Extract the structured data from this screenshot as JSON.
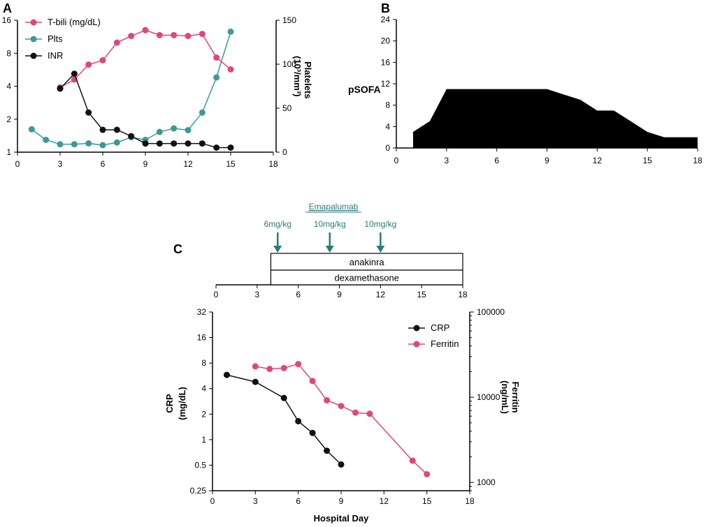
{
  "panels": {
    "a": "A",
    "b": "B",
    "c": "C"
  },
  "colors": {
    "tbili": "#e0467a",
    "plts": "#3a9a9a",
    "inr": "#111111",
    "crp": "#111111",
    "ferritin": "#e0467a",
    "annot": "#2b7a78",
    "sofa": "#000000"
  },
  "chart_data": [
    {
      "id": "A",
      "type": "line",
      "x": {
        "ticks": [
          "0",
          "3",
          "6",
          "9",
          "12",
          "15",
          "18"
        ],
        "lim": [
          0,
          18
        ]
      },
      "y_left": {
        "scale": "log2",
        "ticks": [
          "1",
          "2",
          "4",
          "8",
          "16"
        ],
        "lim": [
          1,
          16
        ]
      },
      "y_right": {
        "ticks": [
          "0",
          "50",
          "100",
          "150"
        ],
        "lim": [
          0,
          150
        ],
        "label": "Platelets",
        "label2": "(10³/mm³)"
      },
      "legend": [
        "T-bili (mg/dL)",
        "Plts",
        "INR"
      ],
      "series": [
        {
          "name": "T-bili (mg/dL)",
          "axis": "left",
          "x": [
            3,
            4,
            5,
            6,
            7,
            8,
            9,
            10,
            11,
            12,
            13,
            14,
            15
          ],
          "y": [
            3.9,
            4.6,
            6.3,
            6.9,
            10,
            11.5,
            13,
            11.7,
            11.7,
            11.5,
            12,
            7.3,
            5.7
          ]
        },
        {
          "name": "Plts",
          "axis": "right",
          "x": [
            1,
            2,
            3,
            4,
            5,
            6,
            7,
            8,
            9,
            10,
            11,
            12,
            13,
            14,
            15
          ],
          "y": [
            26,
            14,
            9,
            9,
            10,
            8,
            11,
            17,
            14,
            23,
            27,
            25,
            45,
            85,
            137
          ]
        },
        {
          "name": "INR",
          "axis": "left",
          "x": [
            3,
            4,
            5,
            6,
            7,
            8,
            9,
            10,
            11,
            12,
            13,
            14,
            15
          ],
          "y": [
            3.8,
            5.2,
            2.3,
            1.6,
            1.6,
            1.4,
            1.2,
            1.2,
            1.2,
            1.2,
            1.2,
            1.1,
            1.1
          ]
        }
      ]
    },
    {
      "id": "B",
      "type": "area",
      "ylabel": "pSOFA",
      "x": {
        "ticks": [
          "0",
          "3",
          "6",
          "9",
          "12",
          "15",
          "18"
        ],
        "lim": [
          0,
          18
        ]
      },
      "y": {
        "ticks": [
          "0",
          "4",
          "8",
          "12",
          "16",
          "20",
          "24"
        ],
        "lim": [
          0,
          24
        ]
      },
      "series": [
        {
          "name": "pSOFA",
          "x": [
            1,
            2,
            3,
            4,
            5,
            6,
            7,
            8,
            9,
            10,
            11,
            12,
            13,
            14,
            15,
            16,
            17,
            18
          ],
          "y": [
            3,
            5,
            11,
            11,
            11,
            11,
            11,
            11,
            11,
            10,
            9,
            7,
            7,
            5,
            3,
            2,
            2,
            2
          ]
        }
      ]
    },
    {
      "id": "C",
      "type": "line",
      "xlabel": "Hospital Day",
      "x": {
        "ticks": [
          "0",
          "3",
          "6",
          "9",
          "12",
          "15",
          "18"
        ],
        "lim": [
          0,
          18
        ]
      },
      "y_left": {
        "scale": "log2",
        "ticks": [
          "0.25",
          "0.5",
          "1",
          "2",
          "4",
          "8",
          "16",
          "32"
        ],
        "lim": [
          0.25,
          32
        ],
        "label": "CRP",
        "label2": "(mg/dL)"
      },
      "y_right": {
        "scale": "log10",
        "ticks": [
          "1000",
          "10000",
          "100000"
        ],
        "lim": [
          800,
          100000
        ],
        "label": "Ferritin",
        "label2": "(ng/mL)"
      },
      "legend": [
        "CRP",
        "Ferritin"
      ],
      "series": [
        {
          "name": "CRP",
          "axis": "left",
          "x": [
            1,
            3,
            5,
            6,
            7,
            8,
            9
          ],
          "y": [
            5.8,
            4.8,
            3.1,
            1.65,
            1.2,
            0.74,
            0.51
          ]
        },
        {
          "name": "Ferritin",
          "axis": "right",
          "x": [
            3,
            4,
            5,
            6,
            7,
            8,
            9,
            10,
            11,
            14,
            15
          ],
          "y": [
            23000,
            21500,
            22000,
            24500,
            15500,
            9200,
            7900,
            6600,
            6400,
            1800,
            1250
          ]
        }
      ],
      "timeline": {
        "ticks": [
          "0",
          "3",
          "6",
          "9",
          "12",
          "15",
          "18"
        ],
        "drug_label": "Emapalumab",
        "doses": [
          {
            "label": "6mg/kg",
            "day": 4.5
          },
          {
            "label": "10mg/kg",
            "day": 8.3
          },
          {
            "label": "10mg/kg",
            "day": 12
          }
        ],
        "bars": [
          {
            "label": "anakinra",
            "start": 4,
            "end": 18
          },
          {
            "label": "dexamethasone",
            "start": 4,
            "end": 18
          }
        ]
      }
    }
  ]
}
